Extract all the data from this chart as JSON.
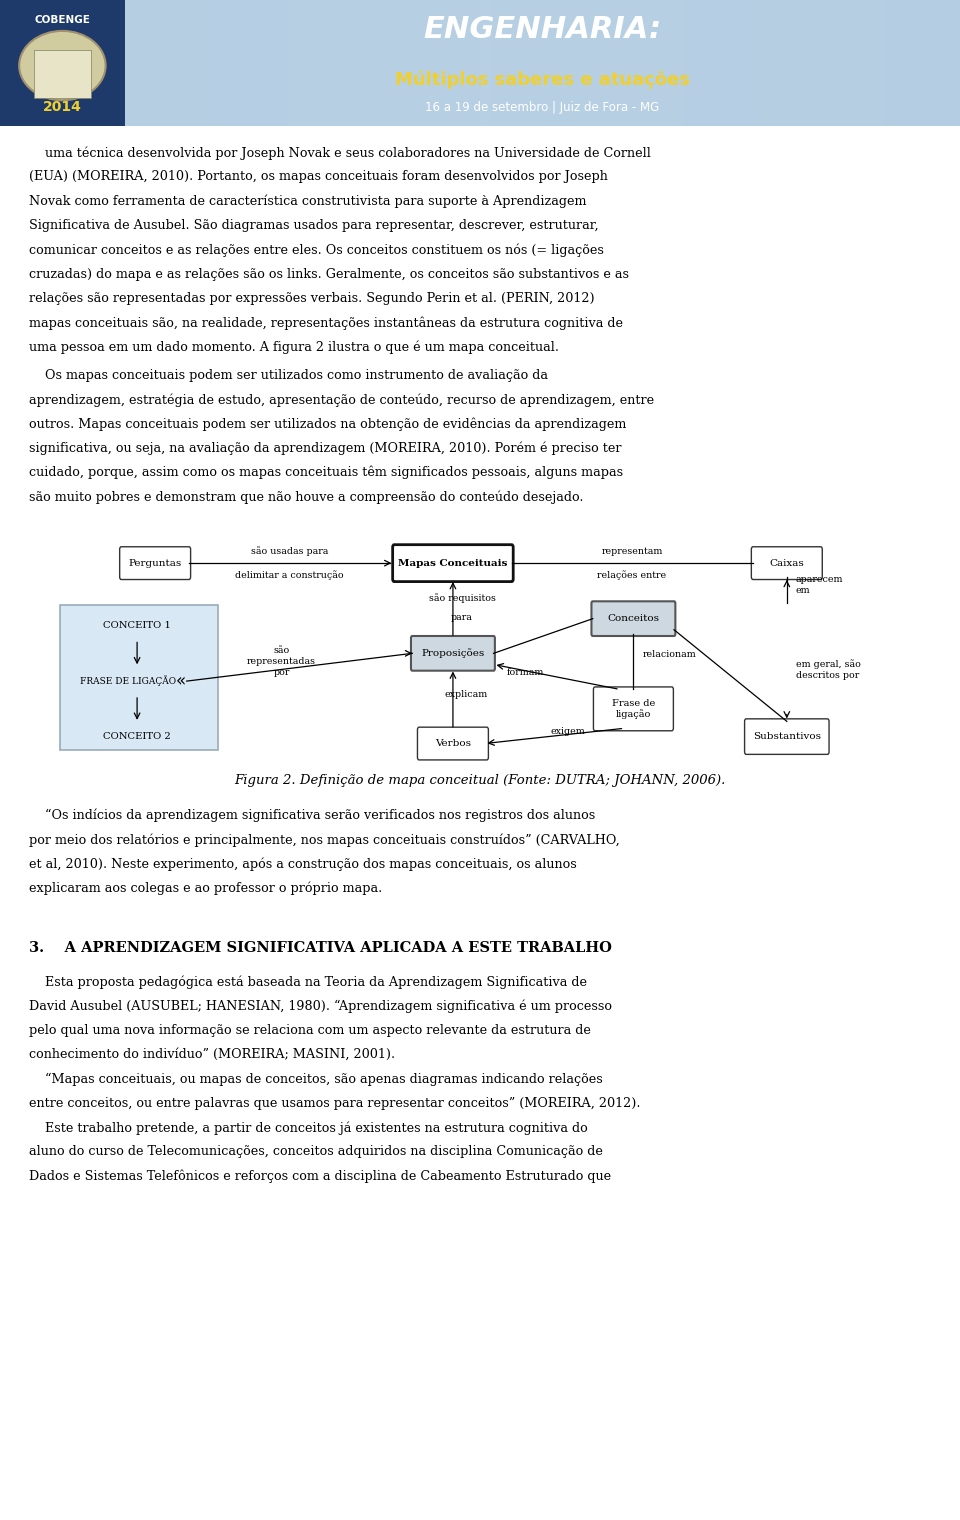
{
  "header_bg": "#b8cfe0",
  "header_left_bg": "#2a4a7a",
  "cobenge_text": "COBENGE",
  "year_text": "2014",
  "title1": "ENGENHARIA:",
  "title2": "Múltiplos saberes e atuações",
  "title3": "16 a 19 de setembro | Juiz de Fora - MG",
  "body_font": "DejaVu Serif",
  "body_fontsize": 9.2,
  "para1": "    uma técnica desenvolvida por Joseph Novak e seus colaboradores na Universidade de Cornell (EUA) (MOREIRA, 2010). Portanto, os mapas conceituais foram desenvolvidos por Joseph Novak como ferramenta de característica construtivista para suporte à Aprendizagem Significativa de Ausubel. São diagramas usados para representar, descrever, estruturar, comunicar conceitos e as relações entre eles. Os conceitos constituem os nós (= ligações cruzadas) do mapa e as relações são os links. Geralmente, os conceitos são substantivos e as relações são representadas por expressões verbais. Segundo Perin et al. (PERIN, 2012) mapas conceituais são, na realidade, representações instantâneas da estrutura cognitiva de uma pessoa em um dado momento. A figura 2 ilustra o que é um mapa conceitual.",
  "para1b": "    Os mapas conceituais podem ser utilizados como instrumento de avaliação da aprendizagem, estratégia de estudo, apresentação de conteúdo, recurso de aprendizagem, entre outros. Mapas conceituais podem ser utilizados na obtenção de evidências da aprendizagem significativa, ou seja, na avaliação da aprendizagem (MOREIRA, 2010). Porém é preciso ter cuidado, porque, assim como os mapas conceituais têm significados pessoais, alguns mapas são muito pobres e demonstram que não houve a compreensão do conteúdo desejado.",
  "fig_caption": "Figura 2. Definição de mapa conceitual (Fonte: DUTRA; JOHANN, 2006).",
  "para2": "    “Os indícios da aprendizagem significativa serão verificados nos registros dos alunos por meio dos relatórios e principalmente, nos mapas conceituais construídos” (CARVALHO, et al, 2010). Neste experimento, após a construção dos mapas conceituais, os alunos explicaram aos colegas e ao professor o próprio mapa.",
  "section3": "3.    A APRENDIZAGEM SIGNIFICATIVA APLICADA A ESTE TRABALHO",
  "para3a": "    Esta proposta pedagógica está baseada na Teoria da Aprendizagem Significativa de David Ausubel (AUSUBEL; HANESIAN, 1980). “Aprendizagem significativa é um processo pelo qual uma nova informação se relaciona com um aspecto relevante da estrutura de conhecimento do indivíduo” (MOREIRA; MASINI, 2001).",
  "para3b": "    “Mapas conceituais, ou mapas de conceitos, são apenas diagramas indicando relações entre conceitos, ou entre palavras que usamos para representar conceitos” (MOREIRA, 2012).",
  "para3c": "    Este trabalho pretende, a partir de conceitos já existentes na estrutura cognitiva do aluno do curso de Telecomunicações, conceitos adquiridos na disciplina Comunicação de Dados e Sistemas Telefônicos e reforços com a disciplina de Cabeamento Estruturado que"
}
